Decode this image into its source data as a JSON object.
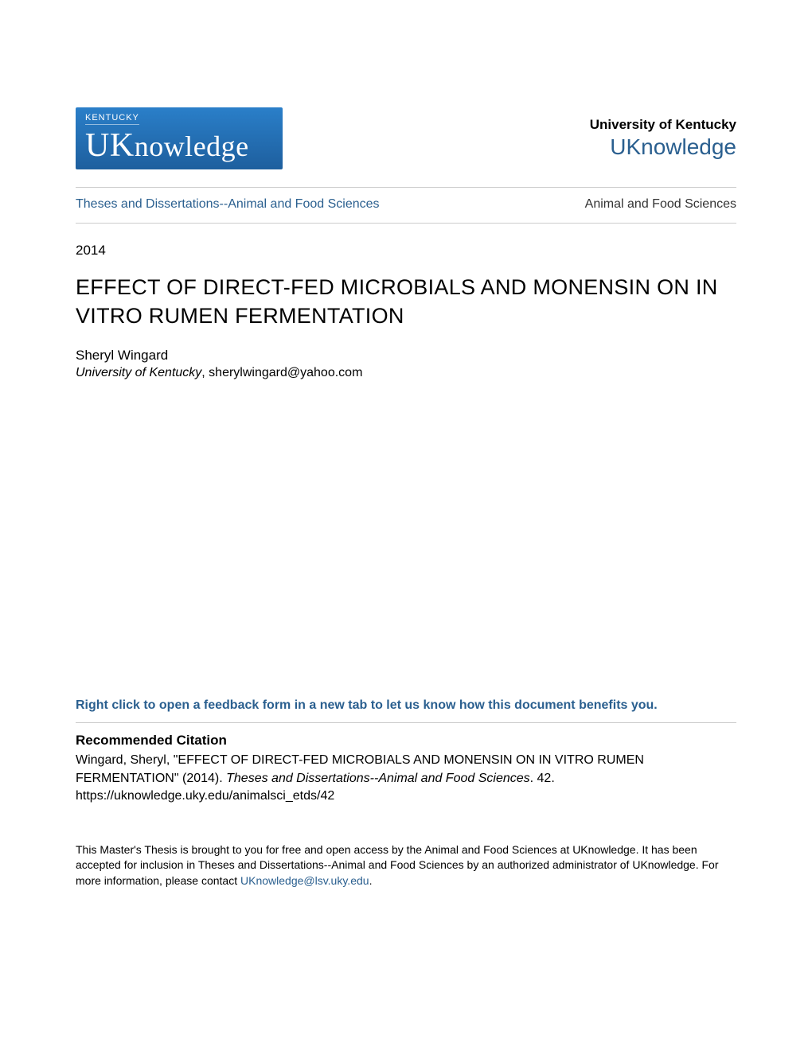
{
  "colors": {
    "link_blue": "#2a5f8f",
    "logo_gradient_top": "#2a7fc9",
    "logo_gradient_bottom": "#1e5f9e",
    "divider": "#cccccc",
    "text_black": "#000000",
    "background": "#ffffff"
  },
  "typography": {
    "body_font": "Arial, Helvetica, sans-serif",
    "logo_font": "Georgia, serif",
    "title_fontsize": 27,
    "body_fontsize": 16,
    "footer_fontsize": 14
  },
  "logo": {
    "kentucky_label": "KENTUCKY",
    "main_text": "UKnowledge"
  },
  "header": {
    "university": "University of Kentucky",
    "repository": "UKnowledge"
  },
  "breadcrumb": {
    "left": "Theses and Dissertations--Animal and Food Sciences",
    "right": "Animal and Food Sciences"
  },
  "year": "2014",
  "title": "EFFECT OF DIRECT-FED MICROBIALS AND MONENSIN ON IN VITRO RUMEN FERMENTATION",
  "author": {
    "name": "Sheryl Wingard",
    "affiliation": "University of Kentucky",
    "email": "sherylwingard@yahoo.com"
  },
  "feedback_link": "Right click to open a feedback form in a new tab to let us know how this document benefits you.",
  "citation": {
    "heading": "Recommended Citation",
    "author_last": "Wingard, Sheryl",
    "title_quoted": "\"EFFECT OF DIRECT-FED MICROBIALS AND MONENSIN ON IN VITRO RUMEN FERMENTATION\"",
    "year": "(2014)",
    "series": "Theses and Dissertations--Animal and Food Sciences",
    "number": ". 42.",
    "url": "https://uknowledge.uky.edu/animalsci_etds/42"
  },
  "footer": {
    "text_before": "This Master's Thesis is brought to you for free and open access by the Animal and Food Sciences at UKnowledge. It has been accepted for inclusion in Theses and Dissertations--Animal and Food Sciences by an authorized administrator of UKnowledge. For more information, please contact ",
    "contact_email": "UKnowledge@lsv.uky.edu",
    "text_after": "."
  }
}
